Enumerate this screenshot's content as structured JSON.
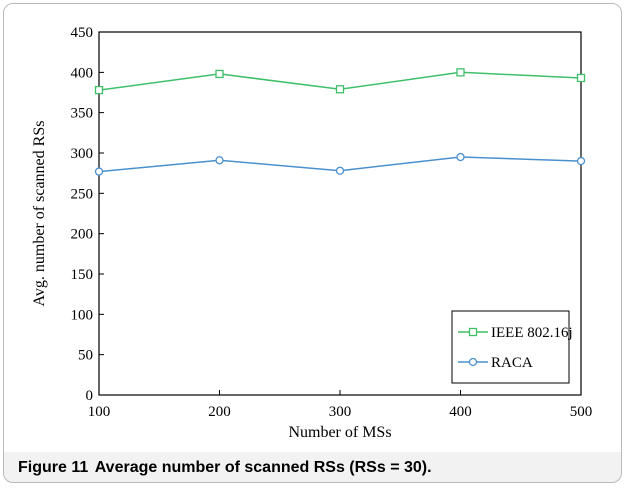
{
  "figure": {
    "caption_label": "Figure 11",
    "caption_text": "Average number of scanned RSs (RSs = 30)."
  },
  "colors": {
    "ieee": "#3fbf6a",
    "raca": "#4a90cf"
  },
  "chart_data": {
    "type": "line",
    "title": "",
    "xlabel": "Number  of MSs",
    "ylabel": "Avg. number  of scanned RSs",
    "x": [
      100,
      200,
      300,
      400,
      500
    ],
    "xlim": [
      100,
      500
    ],
    "ylim": [
      0,
      450
    ],
    "yticks": [
      0,
      50,
      100,
      150,
      200,
      250,
      300,
      350,
      400,
      450
    ],
    "grid": false,
    "legend_position": "bottom-right",
    "series": [
      {
        "name": "IEEE 802.16j",
        "marker": "square",
        "color": "#3fbf6a",
        "values": [
          378,
          398,
          379,
          400,
          393
        ]
      },
      {
        "name": "RACA",
        "marker": "circle",
        "color": "#4a90cf",
        "values": [
          277,
          291,
          278,
          295,
          290
        ]
      }
    ]
  }
}
